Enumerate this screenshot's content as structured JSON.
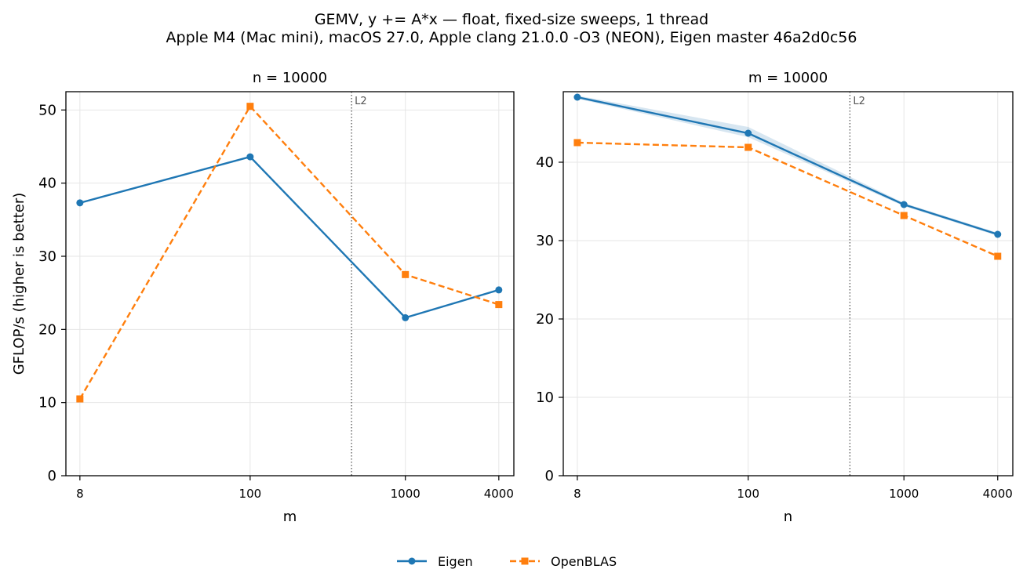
{
  "figure": {
    "title_line1": "GEMV, y += A*x — float, fixed-size sweeps, 1 thread",
    "title_line2": "Apple M4 (Mac mini), macOS 27.0, Apple clang 21.0.0 -O3 (NEON), Eigen master 46a2d0c56"
  },
  "colors": {
    "eigen": "#1f77b4",
    "openblas": "#ff7f0e",
    "grid": "#e6e6e6",
    "l2_line": "#555555"
  },
  "legend": [
    {
      "name": "Eigen",
      "marker": "circle",
      "linestyle": "solid"
    },
    {
      "name": "OpenBLAS",
      "marker": "square",
      "linestyle": "dashed"
    }
  ],
  "chart_data": [
    {
      "type": "line",
      "title": "n = 10000",
      "xlabel": "m",
      "ylabel": "GFLOP/s (higher is better)",
      "x_scale": "log",
      "x": [
        8,
        100,
        1000,
        4000
      ],
      "x_tick_labels": [
        "8",
        "100",
        "1000",
        "4000"
      ],
      "xlim": [
        6.5,
        5000
      ],
      "ylim": [
        0,
        52.5
      ],
      "y_ticks": [
        0,
        10,
        20,
        30,
        40,
        50
      ],
      "grid": true,
      "vline": {
        "x": 450,
        "label": "L2"
      },
      "series": [
        {
          "name": "Eigen",
          "values": [
            37.3,
            43.6,
            21.6,
            25.4
          ]
        },
        {
          "name": "OpenBLAS",
          "values": [
            10.5,
            50.5,
            27.5,
            23.4
          ]
        }
      ]
    },
    {
      "type": "line",
      "title": "m = 10000",
      "xlabel": "n",
      "ylabel": "",
      "x_scale": "log",
      "x": [
        8,
        100,
        1000,
        4000
      ],
      "x_tick_labels": [
        "8",
        "100",
        "1000",
        "4000"
      ],
      "xlim": [
        6.5,
        5000
      ],
      "ylim": [
        0,
        49
      ],
      "y_ticks": [
        0,
        10,
        20,
        30,
        40
      ],
      "grid": true,
      "vline": {
        "x": 450,
        "label": "L2"
      },
      "series": [
        {
          "name": "Eigen",
          "values": [
            48.3,
            43.7,
            34.6,
            30.8
          ],
          "band_lower": [
            48.1,
            43.2,
            34.4,
            30.6
          ],
          "band_upper": [
            48.5,
            44.5,
            34.8,
            31.0
          ]
        },
        {
          "name": "OpenBLAS",
          "values": [
            42.5,
            41.9,
            33.2,
            28.0
          ]
        }
      ]
    }
  ]
}
